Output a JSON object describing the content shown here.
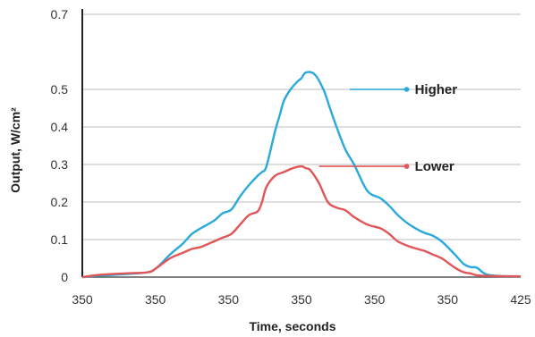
{
  "chart_data": {
    "type": "line",
    "xlabel": "Time, seconds",
    "ylabel": "Output, W/cm²",
    "ylim": [
      0,
      0.7
    ],
    "x_tick_labels": [
      "350",
      "350",
      "350",
      "350",
      "350",
      "350",
      "425"
    ],
    "y_ticks": [
      {
        "value": 0,
        "label": "0"
      },
      {
        "value": 0.1,
        "label": "0.1"
      },
      {
        "value": 0.2,
        "label": "0.2"
      },
      {
        "value": 0.3,
        "label": "0.3"
      },
      {
        "value": 0.4,
        "label": "0.4"
      },
      {
        "value": 0.5,
        "label": "0.5"
      },
      {
        "value": 0.7,
        "label": "0.7"
      }
    ],
    "grid": "horizontal",
    "series": [
      {
        "name": "Higher",
        "color": "#29a9dc",
        "t": [
          0,
          0.04,
          0.1,
          0.15,
          0.17,
          0.2,
          0.23,
          0.25,
          0.27,
          0.3,
          0.32,
          0.34,
          0.36,
          0.38,
          0.4,
          0.41,
          0.42,
          0.44,
          0.45,
          0.46,
          0.475,
          0.49,
          0.5,
          0.51,
          0.53,
          0.55,
          0.565,
          0.58,
          0.6,
          0.62,
          0.65,
          0.68,
          0.7,
          0.72,
          0.74,
          0.76,
          0.78,
          0.8,
          0.82,
          0.85,
          0.87,
          0.885,
          0.9,
          0.92,
          0.95,
          1.0
        ],
        "values": [
          0,
          0.004,
          0.008,
          0.013,
          0.025,
          0.06,
          0.09,
          0.115,
          0.13,
          0.15,
          0.17,
          0.18,
          0.215,
          0.245,
          0.27,
          0.28,
          0.295,
          0.39,
          0.43,
          0.47,
          0.5,
          0.52,
          0.53,
          0.545,
          0.54,
          0.5,
          0.45,
          0.4,
          0.34,
          0.3,
          0.23,
          0.21,
          0.19,
          0.165,
          0.145,
          0.13,
          0.118,
          0.11,
          0.095,
          0.06,
          0.035,
          0.027,
          0.025,
          0.008,
          0.003,
          0.002
        ],
        "label_anchor": [
          0.61,
          0.5
        ],
        "label_point": [
          0.74,
          0.5
        ]
      },
      {
        "name": "Lower",
        "color": "#e15556",
        "t": [
          0,
          0.04,
          0.1,
          0.15,
          0.17,
          0.2,
          0.23,
          0.25,
          0.27,
          0.3,
          0.32,
          0.34,
          0.36,
          0.38,
          0.4,
          0.41,
          0.42,
          0.44,
          0.46,
          0.48,
          0.5,
          0.51,
          0.52,
          0.54,
          0.56,
          0.58,
          0.6,
          0.62,
          0.65,
          0.68,
          0.7,
          0.72,
          0.75,
          0.78,
          0.8,
          0.82,
          0.85,
          0.87,
          0.885,
          0.9,
          0.93,
          1.0
        ],
        "values": [
          0,
          0.006,
          0.01,
          0.013,
          0.025,
          0.05,
          0.065,
          0.075,
          0.08,
          0.095,
          0.105,
          0.115,
          0.14,
          0.165,
          0.175,
          0.2,
          0.24,
          0.27,
          0.28,
          0.29,
          0.295,
          0.29,
          0.285,
          0.25,
          0.2,
          0.185,
          0.178,
          0.16,
          0.14,
          0.13,
          0.115,
          0.095,
          0.08,
          0.07,
          0.06,
          0.05,
          0.025,
          0.013,
          0.01,
          0.005,
          0.003,
          0.002
        ],
        "label_anchor": [
          0.54,
          0.295
        ],
        "label_point": [
          0.74,
          0.295
        ]
      }
    ]
  }
}
